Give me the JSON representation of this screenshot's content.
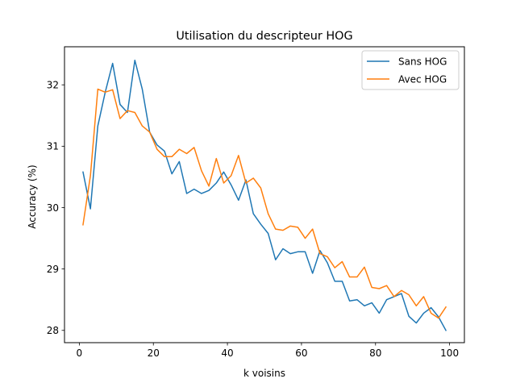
{
  "chart_data": {
    "type": "line",
    "title": "Utilisation du descripteur HOG",
    "xlabel": "k voisins",
    "ylabel": "Accuracy (%)",
    "xlim": [
      -4,
      104
    ],
    "ylim": [
      27.8,
      32.62
    ],
    "xticks": [
      0,
      20,
      40,
      60,
      80,
      100
    ],
    "yticks": [
      28,
      29,
      30,
      31,
      32
    ],
    "grid": false,
    "legend_position": "top-right",
    "x": [
      1,
      3,
      5,
      7,
      9,
      11,
      13,
      15,
      17,
      19,
      21,
      23,
      25,
      27,
      29,
      31,
      33,
      35,
      37,
      39,
      41,
      43,
      45,
      47,
      49,
      51,
      53,
      55,
      57,
      59,
      61,
      63,
      65,
      67,
      69,
      71,
      73,
      75,
      77,
      79,
      81,
      83,
      85,
      87,
      89,
      91,
      93,
      95,
      97,
      99
    ],
    "series": [
      {
        "name": "Sans HOG",
        "color": "#1f77b4",
        "values": [
          30.58,
          29.98,
          31.33,
          31.88,
          32.35,
          31.68,
          31.55,
          32.4,
          31.93,
          31.23,
          31.02,
          30.92,
          30.55,
          30.75,
          30.23,
          30.3,
          30.23,
          30.28,
          30.4,
          30.58,
          30.37,
          30.12,
          30.45,
          29.9,
          29.73,
          29.58,
          29.15,
          29.33,
          29.25,
          29.28,
          29.28,
          28.93,
          29.3,
          29.1,
          28.8,
          28.8,
          28.48,
          28.5,
          28.4,
          28.45,
          28.28,
          28.5,
          28.55,
          28.6,
          28.23,
          28.12,
          28.28,
          28.37,
          28.22,
          28.0
        ]
      },
      {
        "name": "Avec HOG",
        "color": "#ff7f0e",
        "values": [
          29.72,
          30.52,
          31.93,
          31.88,
          31.92,
          31.45,
          31.58,
          31.55,
          31.33,
          31.23,
          30.95,
          30.83,
          30.83,
          30.95,
          30.88,
          30.98,
          30.6,
          30.35,
          30.8,
          30.4,
          30.52,
          30.85,
          30.4,
          30.48,
          30.32,
          29.9,
          29.65,
          29.63,
          29.7,
          29.68,
          29.5,
          29.65,
          29.25,
          29.2,
          29.02,
          29.12,
          28.87,
          28.87,
          29.03,
          28.7,
          28.68,
          28.73,
          28.55,
          28.65,
          28.58,
          28.4,
          28.55,
          28.28,
          28.2,
          28.38
        ]
      }
    ]
  }
}
